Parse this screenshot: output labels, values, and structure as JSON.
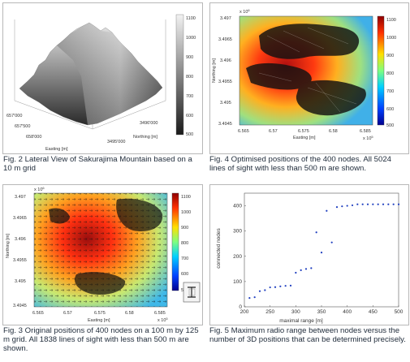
{
  "fig2": {
    "caption": "Fig. 2 Lateral View of Sakurajima Mountain based on a 10 m grid",
    "colorbar_ticks": [
      "1100",
      "1000",
      "900",
      "800",
      "700",
      "600",
      "500"
    ],
    "easting_ticks": [
      "657'000",
      "657'500",
      "658'000"
    ],
    "northing_ticks": [
      "3495'000",
      "3496'000"
    ],
    "xlabel": "Easting [m]",
    "ylabel": "Northing [m]"
  },
  "fig4": {
    "caption": "Fig. 4 Optimised positions of the 400 nodes. All 5024 lines of sight with less than 500 m are shown.",
    "exp_y": "x 10",
    "exp_y_power": "6",
    "exp_x": "x 10",
    "exp_x_power": "5",
    "y_ticks": [
      "3.497",
      "3.4965",
      "3.496",
      "3.4955",
      "3.495",
      "3.4945"
    ],
    "x_ticks": [
      "6.565",
      "6.57",
      "6.575",
      "6.58",
      "6.585"
    ],
    "colorbar_ticks": [
      "1100",
      "1000",
      "900",
      "800",
      "700",
      "600",
      "500"
    ],
    "xlabel": "Easting [m]",
    "ylabel": "Northing [m]"
  },
  "fig3": {
    "caption": "Fig. 3 Original positions of 400 nodes on a 100 m by 125 m grid. All 1838 lines of sight with less than 500 m are shown.",
    "exp_y": "x 10",
    "exp_y_power": "6",
    "exp_x": "x 10",
    "exp_x_power": "5",
    "y_ticks": [
      "3.497",
      "3.4965",
      "3.496",
      "3.4955",
      "3.495",
      "3.4945"
    ],
    "x_ticks": [
      "6.565",
      "6.57",
      "6.575",
      "6.58",
      "6.585"
    ],
    "colorbar_ticks": [
      "1100",
      "1000",
      "900",
      "800",
      "700",
      "600",
      "500"
    ],
    "xlabel": "Easting [m]",
    "ylabel": "Northing [m]"
  },
  "fig5": {
    "caption": "Fig. 5 Maximum radio range between nodes versus the number of 3D positions that can be determined precisely."
  },
  "chart_data": {
    "type": "scatter",
    "xlabel": "maximal range [m]",
    "ylabel": "connected nodes",
    "xlim": [
      200,
      500
    ],
    "ylim": [
      0,
      450
    ],
    "xticks": [
      200,
      250,
      300,
      350,
      400,
      450,
      500
    ],
    "yticks": [
      0,
      100,
      200,
      300,
      400
    ],
    "x": [
      210,
      220,
      230,
      240,
      250,
      260,
      270,
      280,
      290,
      300,
      310,
      320,
      330,
      340,
      350,
      360,
      370,
      380,
      390,
      400,
      410,
      420,
      430,
      440,
      450,
      460,
      470,
      480,
      490,
      500
    ],
    "y": [
      35,
      38,
      62,
      66,
      77,
      78,
      81,
      83,
      84,
      135,
      145,
      150,
      153,
      295,
      215,
      380,
      255,
      395,
      398,
      400,
      402,
      406,
      406,
      406,
      406,
      406,
      406,
      406,
      406,
      406
    ],
    "color": "#1f3fbf"
  }
}
